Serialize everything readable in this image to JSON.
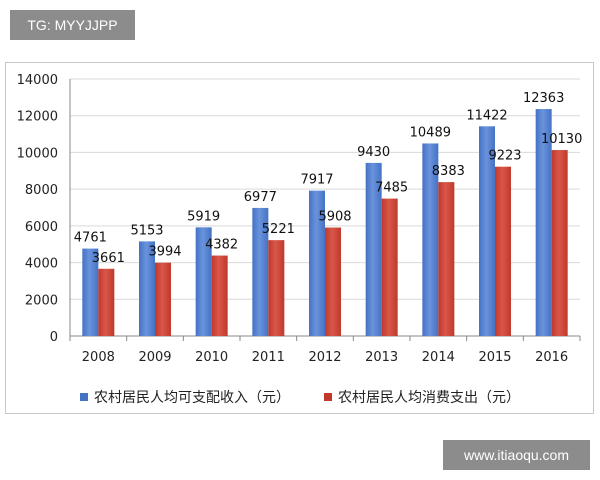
{
  "watermark_top": "TG: MYYJJPP",
  "watermark_bottom": "www.itiaoqu.com",
  "chart_data": {
    "type": "bar",
    "title": "",
    "categories": [
      "2008",
      "2009",
      "2010",
      "2011",
      "2012",
      "2013",
      "2014",
      "2015",
      "2016"
    ],
    "series": [
      {
        "name": "农村居民人均可支配收入（元）",
        "color": "#4472c4",
        "values": [
          4761,
          5153,
          5919,
          6977,
          7917,
          9430,
          10489,
          11422,
          12363
        ]
      },
      {
        "name": "农村居民人均消费支出（元）",
        "color": "#c0392b",
        "values": [
          3661,
          3994,
          4382,
          5221,
          5908,
          7485,
          8383,
          9223,
          10130
        ]
      }
    ],
    "ylim": [
      0,
      14000
    ],
    "yticks": [
      "0",
      "2000",
      "4000",
      "6000",
      "8000",
      "10000",
      "12000",
      "14000"
    ],
    "grid": true,
    "legend_position": "bottom"
  }
}
